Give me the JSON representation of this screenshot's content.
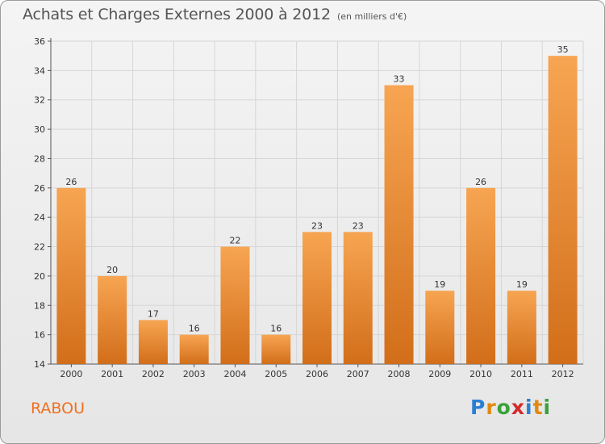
{
  "title": "Achats et Charges Externes 2000 à 2012",
  "subtitle": "(en milliers d'€)",
  "place_label": "RABOU",
  "logo": {
    "letters": [
      {
        "ch": "P",
        "color": "#2a7fd4"
      },
      {
        "ch": "r",
        "color": "#e08a10"
      },
      {
        "ch": "o",
        "color": "#3aa23a"
      },
      {
        "ch": "x",
        "color": "#d42a2a"
      },
      {
        "ch": "i",
        "color": "#2a7fd4"
      },
      {
        "ch": "t",
        "color": "#e08a10"
      },
      {
        "ch": "i",
        "color": "#3aa23a"
      }
    ]
  },
  "chart_data": {
    "type": "bar",
    "categories": [
      "2000",
      "2001",
      "2002",
      "2003",
      "2004",
      "2005",
      "2006",
      "2007",
      "2008",
      "2009",
      "2010",
      "2011",
      "2012"
    ],
    "values": [
      26,
      20,
      17,
      16,
      22,
      16,
      23,
      23,
      33,
      19,
      26,
      19,
      35
    ],
    "ylim": [
      14,
      36
    ],
    "yticks": [
      14,
      16,
      18,
      20,
      22,
      24,
      26,
      28,
      30,
      32,
      34,
      36
    ],
    "grid": true,
    "bar_color_light": "#f7a552",
    "bar_color_dark": "#d26e1a",
    "data_labels": true
  }
}
